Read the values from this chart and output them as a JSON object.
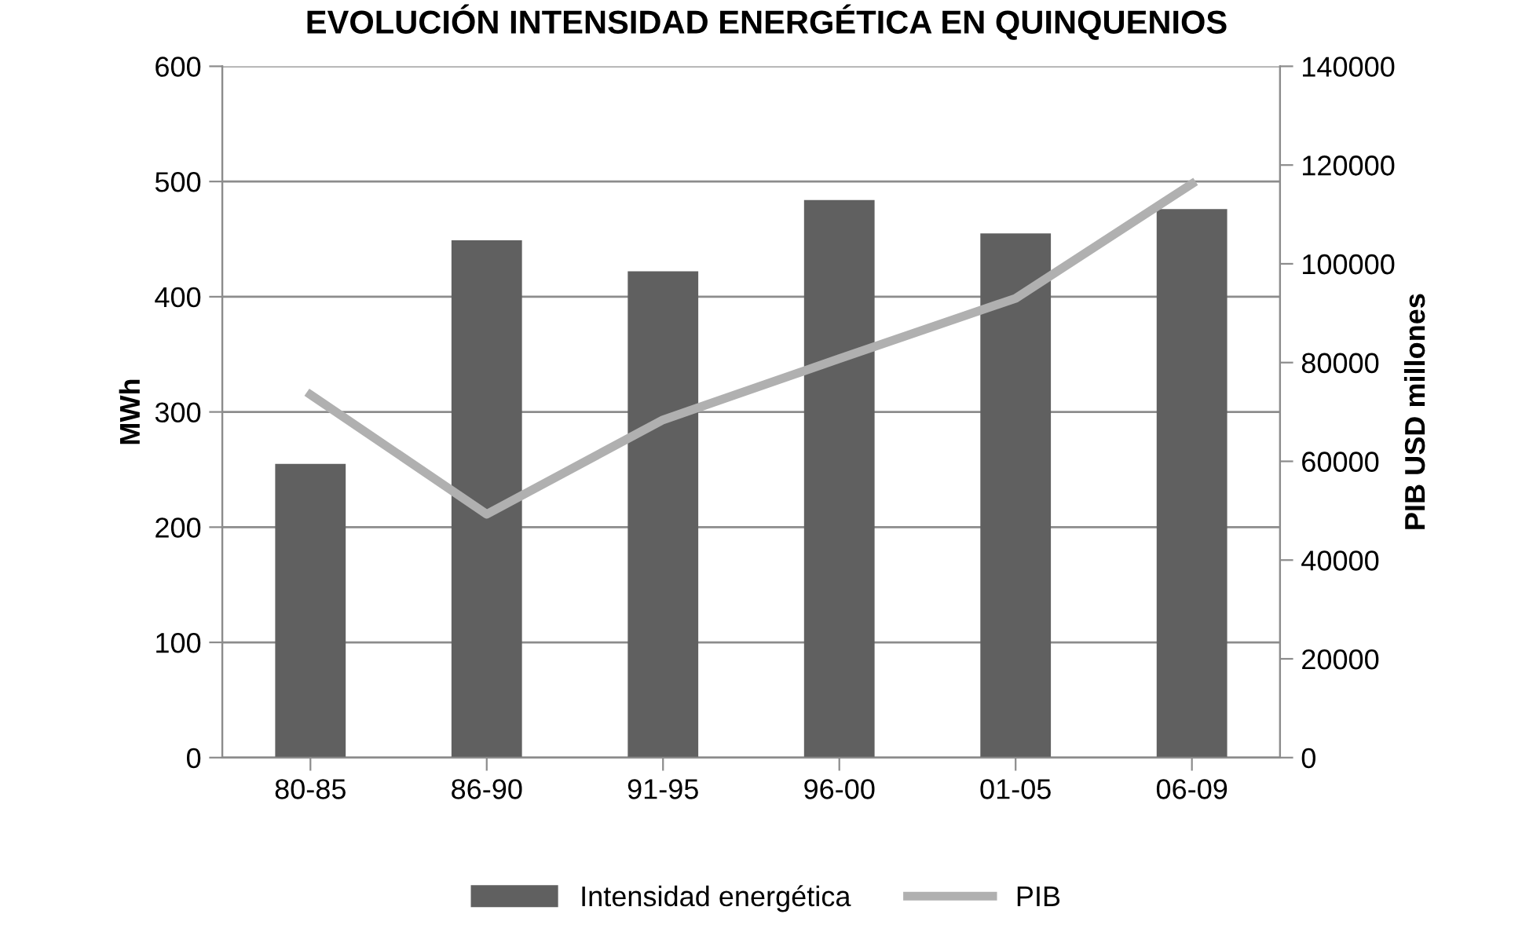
{
  "chart_data": {
    "type": "bar",
    "title": "EVOLUCIÓN INTENSIDAD ENERGÉTICA EN QUINQUENIOS",
    "ylabel": "MWh",
    "y2label": "PIB USD millones",
    "categories": [
      "80-85",
      "86-90",
      "91-95",
      "96-00",
      "01-05",
      "06-09"
    ],
    "series": [
      {
        "name": "Intensidad energética",
        "color": "#606060",
        "values": [
          255,
          449,
          422,
          484,
          455,
          476
        ]
      },
      {
        "name": "PIB",
        "type": "line",
        "axis": "y2",
        "color": "#b0b0b0",
        "values": [
          73500,
          49300,
          68400,
          80800,
          93000,
          116200
        ]
      }
    ],
    "ylim": [
      0,
      600
    ],
    "yticks": [
      0,
      100,
      200,
      300,
      400,
      500,
      600
    ],
    "y2lim": [
      0,
      140000
    ],
    "y2ticks": [
      0,
      20000,
      40000,
      60000,
      80000,
      100000,
      120000,
      140000
    ],
    "grid": "y",
    "legend": "bottom",
    "marker": "none",
    "line_style": "solid"
  }
}
